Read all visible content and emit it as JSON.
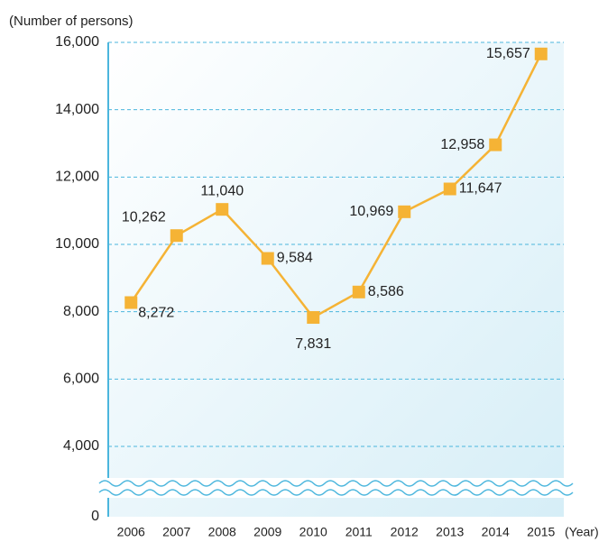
{
  "chart_data": {
    "type": "line",
    "y_label": "(Number of persons)",
    "x_label": "(Year)",
    "categories": [
      "2006",
      "2007",
      "2008",
      "2009",
      "2010",
      "2011",
      "2012",
      "2013",
      "2014",
      "2015"
    ],
    "series": [
      {
        "name": "Number of persons",
        "color": "#f5b335",
        "values": [
          8272,
          10262,
          11040,
          9584,
          7831,
          8586,
          10969,
          11647,
          12958,
          15657
        ],
        "value_labels": [
          "8,272",
          "10,262",
          "11,040",
          "9,584",
          "7,831",
          "8,586",
          "10,969",
          "11,647",
          "12,958",
          "15,657"
        ]
      }
    ],
    "ylim": [
      0,
      16000
    ],
    "yticks": [
      0,
      {
        "value": 4000,
        "label": "4,000"
      },
      {
        "value": 6000,
        "label": "6,000"
      },
      {
        "value": 8000,
        "label": "8,000"
      },
      {
        "value": 10000,
        "label": "10,000"
      },
      {
        "value": 12000,
        "label": "12,000"
      },
      {
        "value": 14000,
        "label": "14,000"
      },
      {
        "value": 16000,
        "label": "16,000"
      }
    ],
    "axis_break": true,
    "grid": true
  }
}
